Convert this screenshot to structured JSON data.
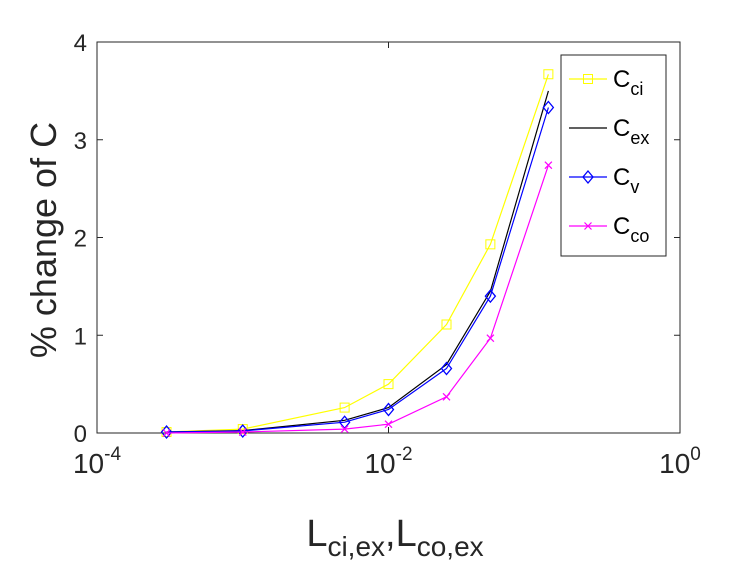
{
  "chart_data": {
    "type": "line",
    "xscale": "log",
    "xlim": [
      0.0001,
      1
    ],
    "ylim": [
      0,
      4
    ],
    "xtick_values": [
      0.0001,
      0.01,
      1
    ],
    "xtick_labels": [
      {
        "base": "10",
        "exp": "-4"
      },
      {
        "base": "10",
        "exp": "-2"
      },
      {
        "base": "10",
        "exp": "0"
      }
    ],
    "ytick_values": [
      0,
      1,
      2,
      3,
      4
    ],
    "ytick_labels": [
      "0",
      "1",
      "2",
      "3",
      "4"
    ],
    "ylabel": "% change of C",
    "xlabel": {
      "part1": "L",
      "sub1": "ci,ex",
      "sep": ",",
      "part2": "L",
      "sub2": "co,ex"
    },
    "grid": false,
    "legend_position": "top-right",
    "x": [
      0.0003,
      0.001,
      0.005,
      0.01,
      0.025,
      0.05,
      0.125
    ],
    "series": [
      {
        "name": "C",
        "sub": "ci",
        "color": "#ffff00",
        "marker": "square",
        "values": [
          0.01,
          0.04,
          0.26,
          0.5,
          1.11,
          1.93,
          3.67
        ]
      },
      {
        "name": "C",
        "sub": "ex",
        "color": "#000000",
        "marker": "none",
        "values": [
          0.01,
          0.025,
          0.13,
          0.26,
          0.7,
          1.45,
          3.5
        ]
      },
      {
        "name": "C",
        "sub": "v",
        "color": "#0000ff",
        "marker": "diamond",
        "values": [
          0.01,
          0.02,
          0.11,
          0.24,
          0.66,
          1.4,
          3.33
        ]
      },
      {
        "name": "C",
        "sub": "co",
        "color": "#ff00ff",
        "marker": "x",
        "values": [
          0.0,
          0.01,
          0.04,
          0.09,
          0.37,
          0.97,
          2.74
        ]
      }
    ]
  }
}
